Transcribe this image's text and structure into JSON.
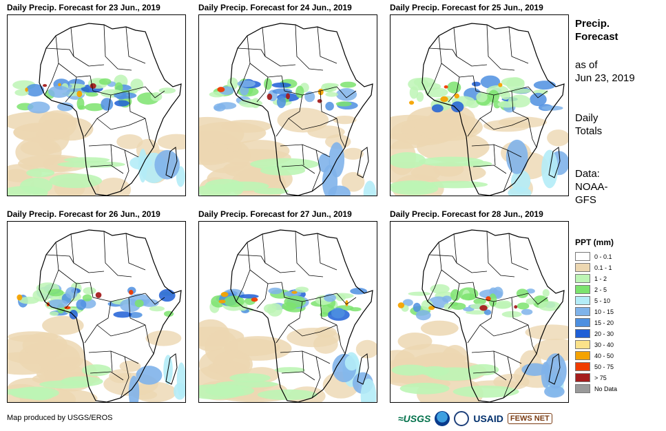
{
  "panels": [
    {
      "title": "Daily Precip. Forecast for 23 Jun., 2019"
    },
    {
      "title": "Daily Precip. Forecast for 24 Jun., 2019"
    },
    {
      "title": "Daily Precip. Forecast for 25 Jun., 2019"
    },
    {
      "title": "Daily Precip. Forecast for 26 Jun., 2019"
    },
    {
      "title": "Daily Precip. Forecast for 27 Jun., 2019"
    },
    {
      "title": "Daily Precip. Forecast for 28 Jun., 2019"
    }
  ],
  "sidebar": {
    "title_line1": "Precip.",
    "title_line2": "Forecast",
    "asof_line1": "as of",
    "asof_line2": "Jun 23, 2019",
    "totals_line1": "Daily",
    "totals_line2": "Totals",
    "data_line1": "Data:",
    "data_line2": "NOAA-",
    "data_line3": "GFS"
  },
  "legend": {
    "title": "PPT (mm)",
    "items": [
      {
        "label": "0 - 0.1",
        "color": "#ffffff"
      },
      {
        "label": "0.1 - 1",
        "color": "#ecd7b1"
      },
      {
        "label": "1 - 2",
        "color": "#bdf5b5"
      },
      {
        "label": "2 - 5",
        "color": "#7ce36e"
      },
      {
        "label": "5 - 10",
        "color": "#b4ecf7"
      },
      {
        "label": "10 - 15",
        "color": "#7fb3ea"
      },
      {
        "label": "15 - 20",
        "color": "#4d8fe0"
      },
      {
        "label": "20 - 30",
        "color": "#1f5fd6"
      },
      {
        "label": "30 - 40",
        "color": "#fbe28a"
      },
      {
        "label": "40 - 50",
        "color": "#f4a300"
      },
      {
        "label": "50 - 75",
        "color": "#f03b00"
      },
      {
        "label": "> 75",
        "color": "#a51d1d"
      },
      {
        "label": "No Data",
        "color": "#999999"
      }
    ]
  },
  "footer": {
    "credit": "Map produced by USGS/EROS",
    "logo_usgs": "≈USGS",
    "logo_usaid": "USAID",
    "logo_fews": "FEWS NET"
  }
}
